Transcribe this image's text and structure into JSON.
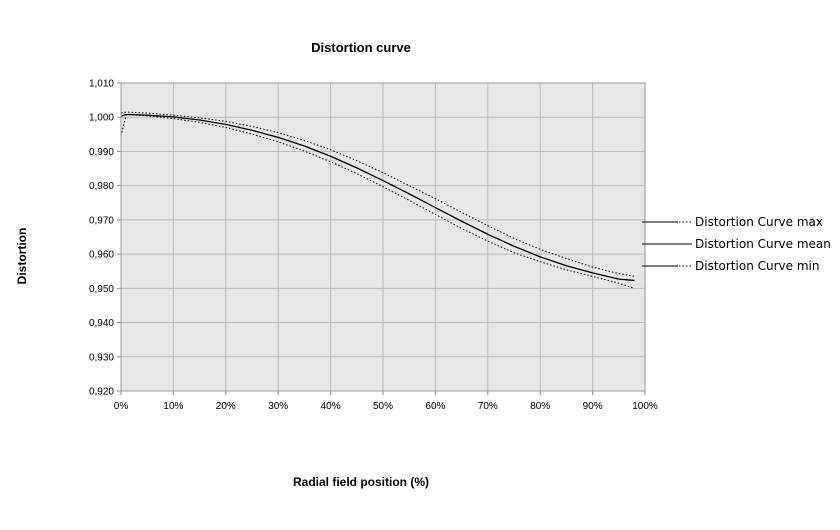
{
  "chart_data": {
    "type": "line",
    "title": "Distortion curve",
    "xlabel": "Radial field position (%)",
    "ylabel": "Distortion",
    "xlim": [
      0,
      100
    ],
    "ylim": [
      0.92,
      1.01
    ],
    "x_ticks": [
      "0%",
      "10%",
      "20%",
      "30%",
      "40%",
      "50%",
      "60%",
      "70%",
      "80%",
      "90%",
      "100%"
    ],
    "x_tick_values": [
      0,
      10,
      20,
      30,
      40,
      50,
      60,
      70,
      80,
      90,
      100
    ],
    "y_ticks": [
      "0,920",
      "0,930",
      "0,940",
      "0,950",
      "0,960",
      "0,970",
      "0,980",
      "0,990",
      "1,000",
      "1,010"
    ],
    "y_tick_values": [
      0.92,
      0.93,
      0.94,
      0.95,
      0.96,
      0.97,
      0.98,
      0.99,
      1.0,
      1.01
    ],
    "grid": true,
    "plot_background": "#e6e6e6",
    "grid_color": "#bbbbbb",
    "legend_position": "right",
    "series": [
      {
        "name": "Distortion Curve max",
        "style": "dotted",
        "color": "#000000",
        "x": [
          0,
          1,
          5,
          10,
          15,
          20,
          25,
          30,
          35,
          40,
          45,
          50,
          55,
          60,
          65,
          70,
          75,
          80,
          85,
          90,
          95,
          98
        ],
        "y": [
          1.0013,
          1.0015,
          1.0012,
          1.0006,
          0.9998,
          0.9988,
          0.9973,
          0.9955,
          0.9932,
          0.9905,
          0.9873,
          0.9838,
          0.98,
          0.9762,
          0.9722,
          0.9683,
          0.9646,
          0.9614,
          0.9587,
          0.9562,
          0.9543,
          0.9535
        ]
      },
      {
        "name": "Distortion Curve mean",
        "style": "solid",
        "color": "#000000",
        "x": [
          0,
          1,
          5,
          10,
          15,
          20,
          25,
          30,
          35,
          40,
          45,
          50,
          55,
          60,
          65,
          70,
          75,
          80,
          85,
          90,
          95,
          98
        ],
        "y": [
          1.0003,
          1.0008,
          1.0006,
          1.0001,
          0.9992,
          0.9979,
          0.9962,
          0.9941,
          0.9916,
          0.9886,
          0.9852,
          0.9815,
          0.9776,
          0.9736,
          0.9696,
          0.9658,
          0.9623,
          0.9592,
          0.9566,
          0.9545,
          0.9527,
          0.9523
        ]
      },
      {
        "name": "Distortion Curve min",
        "style": "dotted",
        "color": "#000000",
        "x": [
          0,
          1,
          5,
          10,
          15,
          20,
          25,
          30,
          35,
          40,
          45,
          50,
          55,
          60,
          65,
          70,
          75,
          80,
          85,
          90,
          95,
          98
        ],
        "y": [
          0.9945,
          1.0008,
          1.0004,
          0.9996,
          0.9985,
          0.997,
          0.9951,
          0.9928,
          0.9901,
          0.987,
          0.9835,
          0.9797,
          0.9757,
          0.9716,
          0.9675,
          0.9638,
          0.9604,
          0.9578,
          0.9554,
          0.9535,
          0.9515,
          0.95
        ]
      }
    ]
  }
}
